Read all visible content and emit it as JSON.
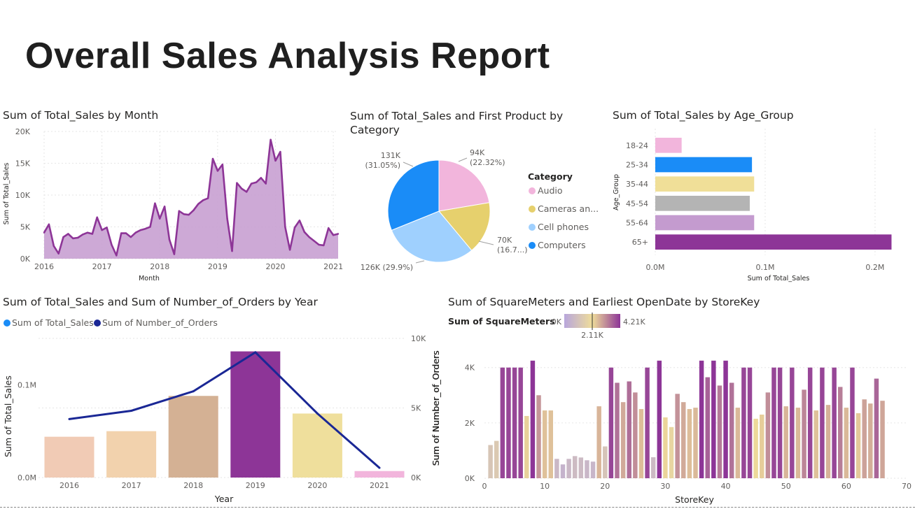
{
  "report_title": "Overall Sales Analysis Report",
  "charts": {
    "month": {
      "title": "Sum of Total_Sales by Month"
    },
    "category": {
      "title": "Sum of Total_Sales and First Product by Category"
    },
    "age": {
      "title": "Sum of Total_Sales by Age_Group"
    },
    "year": {
      "title": "Sum of Total_Sales and Sum of Number_of_Orders by Year"
    },
    "store": {
      "title": "Sum of SquareMeters and Earliest OpenDate by StoreKey"
    }
  },
  "chart_data": [
    {
      "id": "month",
      "type": "area",
      "title": "Sum of Total_Sales by Month",
      "xlabel": "Month",
      "ylabel": "Sum of Total_Sales",
      "x_ticks": [
        "2016",
        "2017",
        "2018",
        "2019",
        "2020",
        "2021"
      ],
      "y_ticks": [
        "0K",
        "5K",
        "10K",
        "15K",
        "20K"
      ],
      "ylim": [
        0,
        20000
      ],
      "start": "2016-01",
      "values": [
        4100,
        5400,
        2000,
        800,
        3400,
        3900,
        3200,
        3300,
        3800,
        4100,
        3900,
        6500,
        4500,
        4900,
        2200,
        500,
        4000,
        4000,
        3400,
        4100,
        4500,
        4700,
        5000,
        8700,
        6300,
        8200,
        3000,
        700,
        7500,
        7000,
        6900,
        7600,
        8600,
        9200,
        9500,
        15700,
        13800,
        14800,
        6300,
        1200,
        11900,
        11000,
        10500,
        11800,
        12000,
        12700,
        11800,
        18700,
        15400,
        16800,
        5000,
        1400,
        4900,
        6000,
        4200,
        3400,
        2800,
        2200,
        2100,
        4800,
        3700,
        3900
      ],
      "color": "#8d3597",
      "fill": "#c8a0d2",
      "grid": true
    },
    {
      "id": "category",
      "type": "pie",
      "title": "Sum of Total_Sales and First Product by Category",
      "legend_title": "Category",
      "legend_position": "right",
      "slices": [
        {
          "name": "Audio",
          "value": 94000,
          "label": "94K",
          "pct": "(22.32%)",
          "color": "#f2b5dc"
        },
        {
          "name": "Cameras an...",
          "value": 70000,
          "label": "70K",
          "pct": "(16.7...)",
          "color": "#e6d06d"
        },
        {
          "name": "Cell phones",
          "value": 126000,
          "label": "126K (29.9%)",
          "pct": "",
          "color": "#9fd0fe"
        },
        {
          "name": "Computers",
          "value": 131000,
          "label": "131K",
          "pct": "(31.05%)",
          "color": "#1a8cf7"
        }
      ]
    },
    {
      "id": "age",
      "type": "bar",
      "orientation": "horizontal",
      "title": "Sum of Total_Sales by Age_Group",
      "xlabel": "Sum of Total_Sales",
      "ylabel": "Age_Group",
      "categories": [
        "18-24",
        "25-34",
        "35-44",
        "45-54",
        "55-64",
        "65+"
      ],
      "values": [
        24000,
        88000,
        90000,
        86000,
        90000,
        215000
      ],
      "colors": [
        "#f2b5dc",
        "#1a8cf7",
        "#f0df98",
        "#b4b4b4",
        "#c49bcf",
        "#8d3597"
      ],
      "x_ticks": [
        "0.0M",
        "0.1M",
        "0.2M"
      ],
      "xlim": [
        0,
        230000
      ],
      "grid": true
    },
    {
      "id": "year",
      "type": "bar",
      "title": "Sum of Total_Sales and Sum of Number_of_Orders by Year",
      "xlabel": "Year",
      "ylabel": "Sum of Total_Sales",
      "y2label": "Sum of Number_of_Orders",
      "categories": [
        "2016",
        "2017",
        "2018",
        "2019",
        "2020",
        "2021"
      ],
      "series": [
        {
          "name": "Sum of Total_Sales",
          "kind": "bar",
          "values": [
            44000,
            50000,
            88000,
            136000,
            69000,
            7000
          ],
          "legend_color": "#1a8cf7"
        },
        {
          "name": "Sum of Number_of_Orders",
          "kind": "line",
          "values": [
            4200,
            4800,
            6200,
            9000,
            4600,
            700
          ],
          "color": "#1a2795"
        }
      ],
      "bar_colors": [
        "#f1cbb5",
        "#f2d2ad",
        "#d4b194",
        "#8d3597",
        "#efdf9c",
        "#f2b5dc"
      ],
      "y_ticks": [
        "0.0M",
        "0.1M"
      ],
      "ylim": [
        0,
        150000
      ],
      "y2_ticks": [
        "0K",
        "5K",
        "10K"
      ],
      "y2lim": [
        0,
        10000
      ],
      "grid": true
    },
    {
      "id": "store",
      "type": "bar",
      "title": "Sum of SquareMeters and Earliest OpenDate by StoreKey",
      "xlabel": "StoreKey",
      "ylabel": "Sum of Number_of_Orders",
      "color_scale": {
        "title": "Sum of SquareMeters",
        "min_label": "0K",
        "mid_label": "2.11K",
        "max_label": "4.21K",
        "min": 0,
        "max": 4210,
        "stops": [
          "#b8a6dc",
          "#efdd9a",
          "#8d3597"
        ]
      },
      "x_ticks": [
        "0",
        "10",
        "20",
        "30",
        "40",
        "50",
        "60",
        "70"
      ],
      "xlim": [
        0,
        70
      ],
      "y_ticks": [
        "0K",
        "2K",
        "4K"
      ],
      "ylim": [
        0,
        4700
      ],
      "x": [
        1,
        2,
        3,
        4,
        5,
        6,
        7,
        8,
        9,
        10,
        11,
        12,
        13,
        14,
        15,
        16,
        17,
        18,
        19,
        20,
        21,
        22,
        23,
        24,
        25,
        26,
        27,
        28,
        29,
        30,
        31,
        32,
        33,
        34,
        35,
        36,
        37,
        38,
        39,
        40,
        41,
        42,
        43,
        44,
        45,
        46,
        47,
        48,
        49,
        50,
        51,
        52,
        53,
        54,
        55,
        56,
        57,
        58,
        59,
        60,
        61,
        62,
        63,
        64,
        65,
        66
      ],
      "values": [
        1200,
        1350,
        4000,
        4000,
        4000,
        4000,
        2250,
        4250,
        3000,
        2450,
        2450,
        700,
        500,
        700,
        800,
        750,
        650,
        600,
        2600,
        1150,
        4000,
        3450,
        2750,
        3500,
        3100,
        2500,
        4000,
        760,
        4250,
        2200,
        1850,
        3050,
        2750,
        2500,
        2550,
        4250,
        3650,
        4250,
        3350,
        4250,
        3450,
        2550,
        4000,
        4000,
        2150,
        2300,
        3100,
        4000,
        4000,
        2600,
        4000,
        2550,
        3200,
        4000,
        2450,
        4000,
        2650,
        4000,
        3300,
        2550,
        4000,
        2350,
        2850,
        2700,
        3600,
        2800
      ],
      "grid": true
    }
  ]
}
